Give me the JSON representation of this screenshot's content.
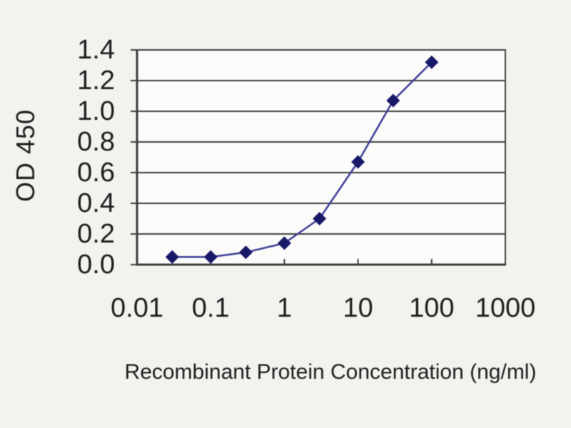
{
  "chart_data": {
    "type": "line",
    "xlabel": "Recombinant Protein Concentration (ng/ml)",
    "ylabel": "OD 450",
    "x_scale": "log",
    "xlim": [
      0.01,
      1000
    ],
    "ylim": [
      0.0,
      1.4
    ],
    "x_ticks": [
      0.01,
      0.1,
      1,
      10,
      100,
      1000
    ],
    "x_tick_labels": [
      "0.01",
      "0.1",
      "1",
      "10",
      "100",
      "1000"
    ],
    "y_ticks": [
      0.0,
      0.2,
      0.4,
      0.6,
      0.8,
      1.0,
      1.2,
      1.4
    ],
    "y_tick_labels": [
      "0.0",
      "0.2",
      "0.4",
      "0.6",
      "0.8",
      "1.0",
      "1.2",
      "1.4"
    ],
    "grid": "horizontal",
    "legend": false,
    "series": [
      {
        "marker": "diamond",
        "x": [
          0.03,
          0.1,
          0.3,
          1,
          3,
          10,
          30,
          100
        ],
        "y": [
          0.05,
          0.05,
          0.08,
          0.14,
          0.3,
          0.67,
          1.07,
          1.32
        ]
      }
    ],
    "colors": {
      "line": "#3c3c96",
      "marker": "#181868",
      "grid": "#3d3d3d",
      "text": "#1e1e1e",
      "plot_background": "#fbfbfa",
      "page_background": "#f3f2ef"
    }
  }
}
